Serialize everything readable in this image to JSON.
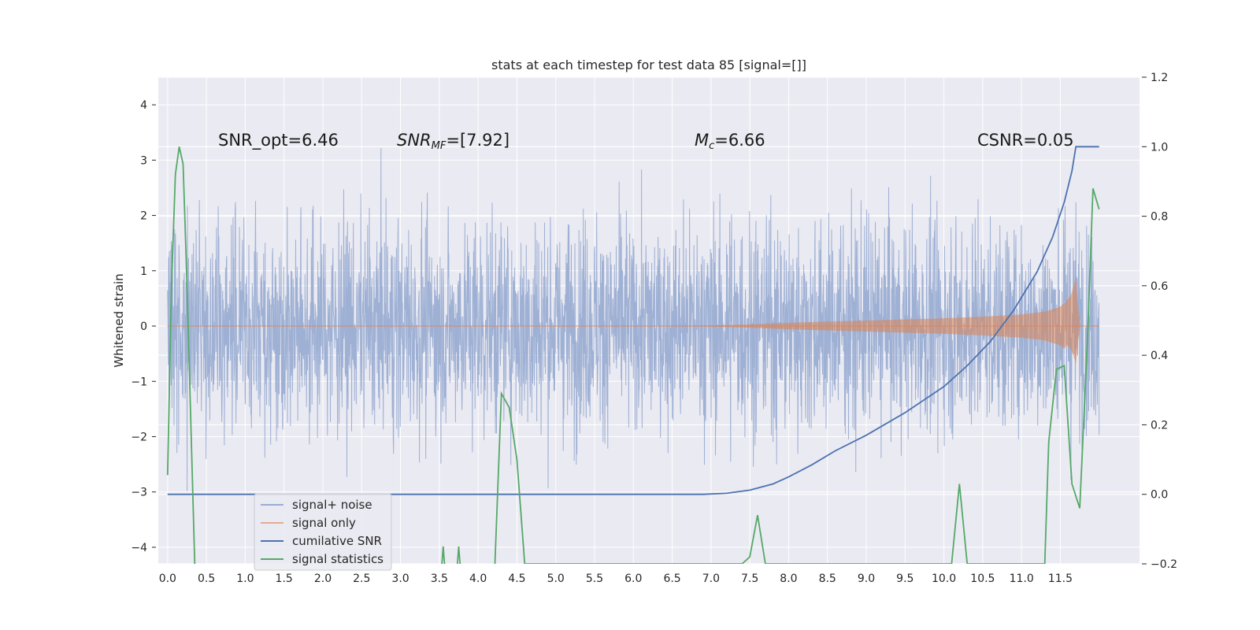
{
  "chart_data": {
    "type": "line",
    "title": "stats at each timestep for test data 85 [signal=[]]",
    "ylabel": "Whitened strain",
    "xlabel": "",
    "xlim": [
      -0.12,
      12.52
    ],
    "ylim_left": [
      -4.3,
      4.5
    ],
    "ylim_right": [
      -0.2,
      1.2
    ],
    "x_ticks": [
      "0.0",
      "0.5",
      "1.0",
      "1.5",
      "2.0",
      "2.5",
      "3.0",
      "3.5",
      "4.0",
      "4.5",
      "5.0",
      "5.5",
      "6.0",
      "6.5",
      "7.0",
      "7.5",
      "8.0",
      "8.5",
      "9.0",
      "9.5",
      "10.0",
      "10.5",
      "11.0",
      "11.5"
    ],
    "y_ticks_left": [
      4,
      3,
      2,
      1,
      0,
      -1,
      -2,
      -3,
      -4
    ],
    "y_ticks_right": [
      "1.2",
      "1.0",
      "0.8",
      "0.6",
      "0.4",
      "0.2",
      "0.0",
      "−0.2"
    ],
    "grid": true,
    "legend_position": "lower-left",
    "annotations": {
      "snr_opt": "SNR_opt=6.46",
      "snr_mf_main": "SNR",
      "snr_mf_sub": "MF",
      "snr_mf_rest": "=[7.92]",
      "mc_main": "M",
      "mc_sub": "c",
      "mc_rest": "=6.66",
      "csnr": "CSNR=0.05"
    },
    "series": [
      {
        "name": "signal+ noise",
        "axis": "left",
        "color": "#9aadd2",
        "description_range": [
          -3.5,
          4.0
        ],
        "x_range": [
          0.0,
          12.0
        ]
      },
      {
        "name": "signal only",
        "axis": "left",
        "color": "#dd8452",
        "envelope": {
          "x": [
            0.0,
            6.5,
            7.0,
            7.5,
            8.0,
            8.5,
            9.0,
            9.5,
            10.0,
            10.5,
            11.0,
            11.3,
            11.5,
            11.6,
            11.65,
            11.7,
            11.75,
            12.0
          ],
          "amp": [
            0.0,
            0.0,
            0.01,
            0.03,
            0.06,
            0.08,
            0.1,
            0.12,
            0.14,
            0.17,
            0.21,
            0.26,
            0.35,
            0.48,
            0.6,
            0.9,
            0.0,
            0.0
          ]
        }
      },
      {
        "name": "cumilative SNR",
        "axis": "right",
        "color": "#4c72b0",
        "x": [
          0.0,
          6.9,
          7.2,
          7.5,
          7.8,
          8.0,
          8.3,
          8.6,
          9.0,
          9.5,
          10.0,
          10.3,
          10.6,
          10.9,
          11.2,
          11.4,
          11.55,
          11.65,
          11.7,
          12.0
        ],
        "y": [
          0.0,
          0.0,
          0.003,
          0.012,
          0.03,
          0.05,
          0.085,
          0.125,
          0.17,
          0.235,
          0.31,
          0.37,
          0.44,
          0.53,
          0.64,
          0.74,
          0.84,
          0.93,
          1.0,
          1.0
        ]
      },
      {
        "name": "signal statistics",
        "axis": "right",
        "color": "#55a868",
        "x": [
          0.0,
          0.05,
          0.1,
          0.15,
          0.2,
          0.25,
          0.3,
          0.35,
          0.4,
          3.5,
          3.55,
          3.6,
          3.7,
          3.75,
          3.8,
          4.2,
          4.3,
          4.4,
          4.5,
          4.6,
          7.4,
          7.5,
          7.6,
          7.7,
          10.1,
          10.2,
          10.3,
          11.3,
          11.35,
          11.45,
          11.55,
          11.65,
          11.75,
          11.85,
          11.92,
          12.0
        ],
        "y": [
          0.055,
          0.6,
          0.92,
          1.0,
          0.95,
          0.6,
          0.2,
          -0.2,
          -0.3,
          -0.3,
          -0.15,
          -0.3,
          -0.3,
          -0.15,
          -0.3,
          -0.3,
          0.29,
          0.25,
          0.1,
          -0.2,
          -0.2,
          -0.18,
          -0.06,
          -0.2,
          -0.2,
          0.03,
          -0.2,
          -0.2,
          0.15,
          0.36,
          0.37,
          0.03,
          -0.04,
          0.45,
          0.88,
          0.82
        ]
      }
    ]
  }
}
